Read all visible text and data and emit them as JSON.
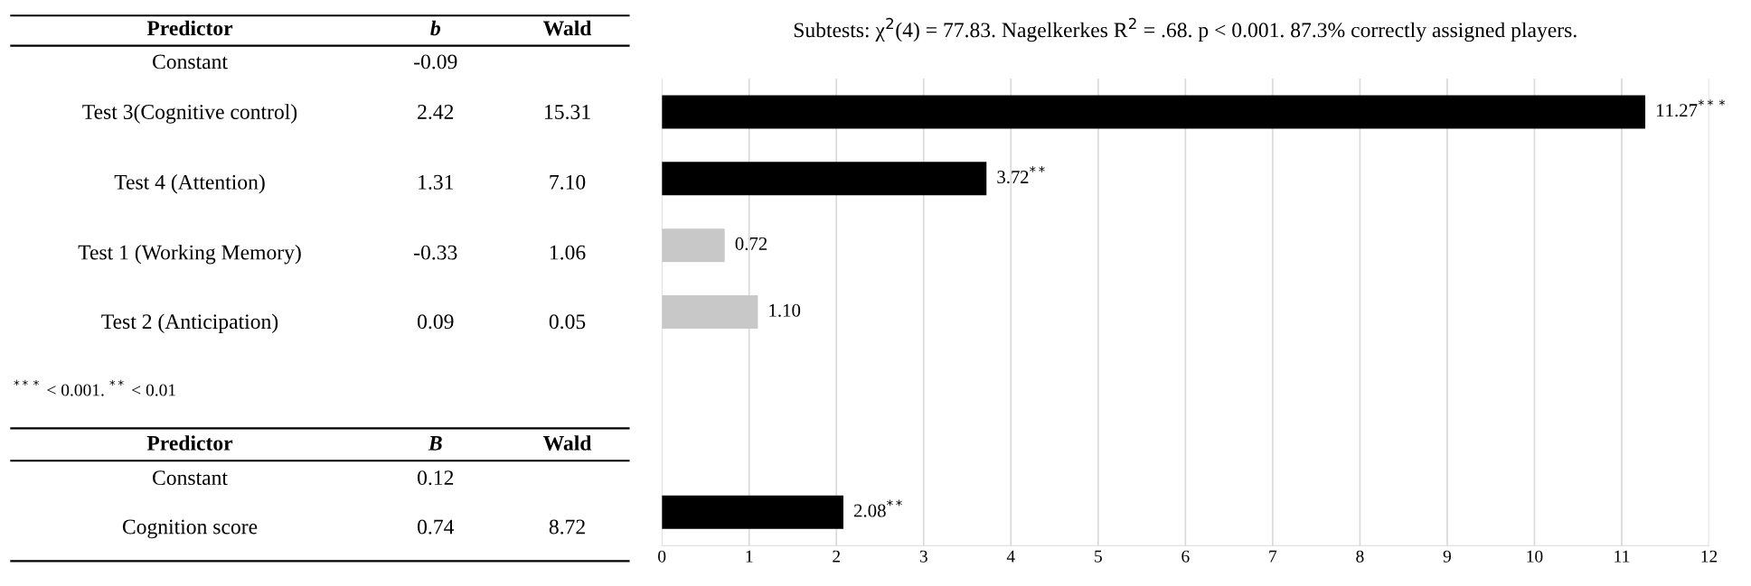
{
  "chart_data": {
    "type": "bar",
    "orientation": "horizontal",
    "title": "Subtests: χ$^{2}$(4) = 77.83. Nagelkerkes R$^{2}$ = .68. p < 0.001. 87.3% correctly assigned players.",
    "categories": [
      null,
      null,
      null,
      null,
      null,
      null,
      null
    ],
    "values": [
      11.27,
      3.72,
      0.72,
      1.1,
      null,
      null,
      2.08
    ],
    "colors": [
      "#000000",
      "#000000",
      "#c8c8c8",
      "#c8c8c8",
      "#000000",
      "#000000",
      "#000000"
    ],
    "value_labels": [
      "11.27$^{***}$",
      "3.72$^{**}$",
      "0.72",
      "1.10",
      null,
      null,
      "2.08$^{**}$"
    ],
    "xlim": [
      0,
      12
    ],
    "xticks": [
      0,
      1,
      2,
      3,
      4,
      5,
      6,
      7,
      8,
      9,
      10,
      11,
      12
    ],
    "grid": "x",
    "tick_labels": "x",
    "annotations": [
      "Predictor",
      "b",
      "Wald",
      "Constant",
      "-0.09",
      "Test 3(Cognitive control)",
      "2.42",
      "15.31",
      "Test 4 (Attention)",
      "1.31",
      "7.10",
      "Test 1 (Working Memory)",
      "-0.33",
      "1.06",
      "Test 2 (Anticipation)",
      "0.09",
      "0.05",
      "$^{***}$ < 0.001. $^{**}$ < 0.01",
      "Predictor",
      "B",
      "Wald",
      "Constant",
      "0.12",
      "Cognition score",
      "0.74",
      "8.72"
    ]
  }
}
